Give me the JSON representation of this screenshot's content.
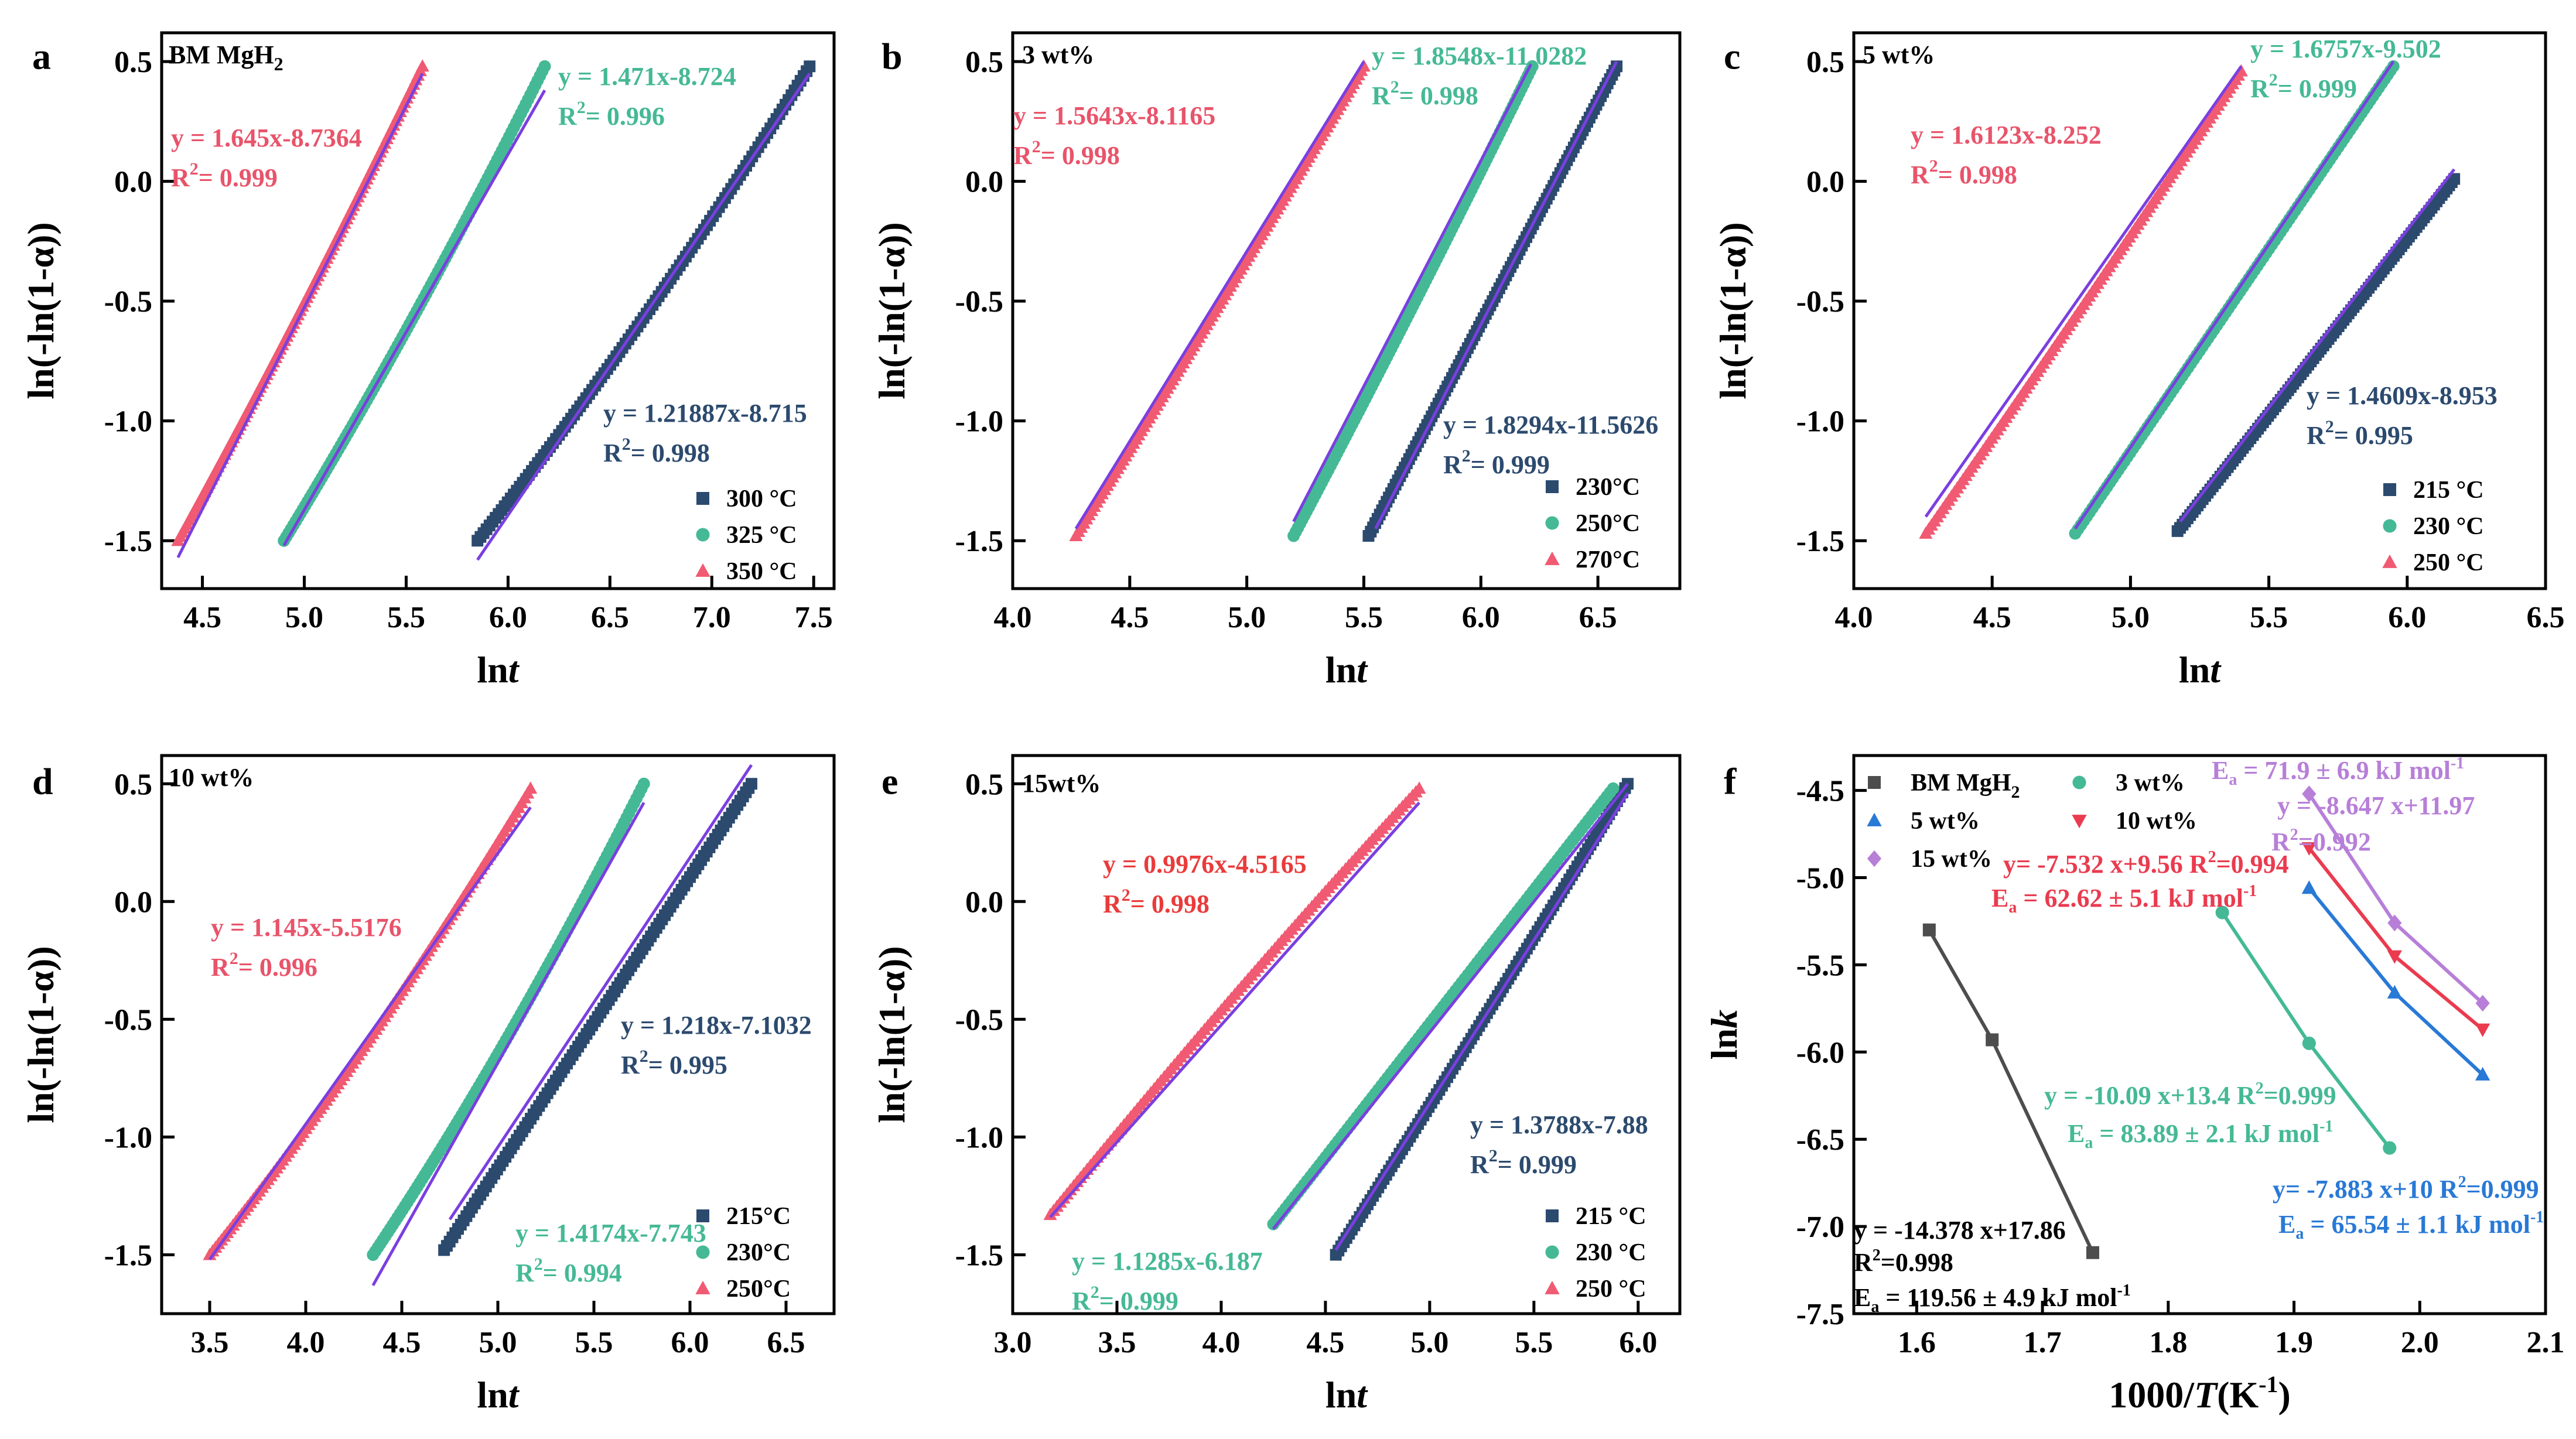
{
  "chart_data": [
    {
      "id": "a",
      "type": "scatter",
      "panel_label": "a",
      "inner_title": "BM MgH",
      "inner_title_sub": "2",
      "xlabel": "ln",
      "xlabel_italic": "t",
      "ylabel": "ln(-ln(1-α))",
      "xlim": [
        4.3,
        7.6
      ],
      "ylim": [
        -1.7,
        0.62
      ],
      "xticks": [
        "4.5",
        "5.0",
        "5.5",
        "6.0",
        "6.5",
        "7.0",
        "7.5"
      ],
      "yticks": [
        "0.5",
        "0.0",
        "-0.5",
        "-1.0",
        "-1.5"
      ],
      "legend": [
        "300 °C",
        "325 °C",
        "350 °C"
      ],
      "series": [
        {
          "name": "300 °C",
          "marker": "square",
          "color": "#2c4a6e",
          "x0": 5.85,
          "x1": 7.48,
          "y0": -1.5,
          "y1": 0.48,
          "curve": 0.12,
          "fit": {
            "x0": 5.85,
            "x1": 7.48,
            "y0": -1.58,
            "y1": 0.45
          }
        },
        {
          "name": "325 °C",
          "marker": "circle",
          "color": "#45b995",
          "x0": 4.9,
          "x1": 6.18,
          "y0": -1.5,
          "y1": 0.48,
          "curve": 0.1,
          "fit": {
            "x0": 4.9,
            "x1": 6.18,
            "y0": -1.52,
            "y1": 0.38
          }
        },
        {
          "name": "350 °C",
          "marker": "triangle",
          "color": "#f05a72",
          "x0": 4.38,
          "x1": 5.58,
          "y0": -1.5,
          "y1": 0.48,
          "curve": 0.06,
          "fit": {
            "x0": 4.38,
            "x1": 5.58,
            "y0": -1.57,
            "y1": 0.45
          }
        }
      ],
      "annotations": [
        {
          "eq": "y  = 1.645x-8.7364",
          "r2": "0.999",
          "color": "#e8546b"
        },
        {
          "eq": "y  = 1.471x-8.724",
          "r2": "0.996",
          "color": "#45b995"
        },
        {
          "eq": "y = 1.21887x-8.715",
          "r2": "0.998",
          "color": "#2c4a6e"
        }
      ]
    },
    {
      "id": "b",
      "type": "scatter",
      "panel_label": "b",
      "inner_title": "3 wt%",
      "xlabel": "ln",
      "xlabel_italic": "t",
      "ylabel": "ln(-ln(1-α))",
      "xlim": [
        4.0,
        6.85
      ],
      "ylim": [
        -1.7,
        0.62
      ],
      "xticks": [
        "4.0",
        "4.5",
        "5.0",
        "5.5",
        "6.0",
        "6.5"
      ],
      "yticks": [
        "0.5",
        "0.0",
        "-0.5",
        "-1.0",
        "-1.5"
      ],
      "legend": [
        "230°C",
        "250°C",
        "270°C"
      ],
      "series": [
        {
          "name": "230°C",
          "marker": "square",
          "color": "#2c4a6e",
          "x0": 5.52,
          "x1": 6.58,
          "y0": -1.48,
          "y1": 0.48,
          "curve": 0.0,
          "fit": {
            "x0": 5.55,
            "x1": 6.58,
            "y0": -1.45,
            "y1": 0.5
          }
        },
        {
          "name": "250°C",
          "marker": "circle",
          "color": "#45b995",
          "x0": 5.2,
          "x1": 6.22,
          "y0": -1.48,
          "y1": 0.48,
          "curve": 0.04,
          "fit": {
            "x0": 5.2,
            "x1": 6.22,
            "y0": -1.42,
            "y1": 0.5
          }
        },
        {
          "name": "270°C",
          "marker": "triangle",
          "color": "#f05a72",
          "x0": 4.27,
          "x1": 5.5,
          "y0": -1.48,
          "y1": 0.48,
          "curve": 0.02,
          "fit": {
            "x0": 4.27,
            "x1": 5.5,
            "y0": -1.45,
            "y1": 0.5
          }
        }
      ],
      "annotations": [
        {
          "eq": "y  = 1.5643x-8.1165",
          "r2": "0.998",
          "color": "#e8546b"
        },
        {
          "eq": "y  = 1.8548x-11.0282",
          "r2": "0.998",
          "color": "#45b995"
        },
        {
          "eq": "y = 1.8294x-11.5626",
          "r2": "0.999",
          "color": "#2c4a6e"
        }
      ]
    },
    {
      "id": "c",
      "type": "scatter",
      "panel_label": "c",
      "inner_title": "5 wt%",
      "xlabel": "ln",
      "xlabel_italic": "t",
      "ylabel": "ln(-ln(1-α))",
      "xlim": [
        4.0,
        6.5
      ],
      "ylim": [
        -1.7,
        0.62
      ],
      "xticks": [
        "4.0",
        "4.5",
        "5.0",
        "5.5",
        "6.0",
        "6.5"
      ],
      "yticks": [
        "0.5",
        "0.0",
        "-0.5",
        "-1.0",
        "-1.5"
      ],
      "legend": [
        "215 °C",
        "230 °C",
        "250 °C"
      ],
      "series": [
        {
          "name": "215 °C",
          "marker": "square",
          "color": "#2c4a6e",
          "x0": 5.17,
          "x1": 6.17,
          "y0": -1.46,
          "y1": 0.01,
          "curve": 0.0,
          "fit": {
            "x0": 5.18,
            "x1": 6.17,
            "y0": -1.42,
            "y1": 0.05
          }
        },
        {
          "name": "230 °C",
          "marker": "circle",
          "color": "#45b995",
          "x0": 4.8,
          "x1": 5.95,
          "y0": -1.47,
          "y1": 0.48,
          "curve": 0.0,
          "fit": {
            "x0": 4.8,
            "x1": 5.95,
            "y0": -1.45,
            "y1": 0.5
          }
        },
        {
          "name": "250 °C",
          "marker": "triangle",
          "color": "#f05a72",
          "x0": 4.26,
          "x1": 5.4,
          "y0": -1.47,
          "y1": 0.46,
          "curve": 0.02,
          "fit": {
            "x0": 4.26,
            "x1": 5.4,
            "y0": -1.4,
            "y1": 0.48
          }
        }
      ],
      "annotations": [
        {
          "eq": "y  = 1.6123x-8.252",
          "r2": "0.998",
          "color": "#e8546b"
        },
        {
          "eq": "y  = 1.6757x-9.502",
          "r2": "0.999",
          "color": "#45b995"
        },
        {
          "eq": "y = 1.4609x-8.953",
          "r2": "0.995",
          "color": "#2c4a6e"
        }
      ]
    },
    {
      "id": "d",
      "type": "scatter",
      "panel_label": "d",
      "inner_title": "10 wt%",
      "xlabel": "ln",
      "xlabel_italic": "t",
      "ylabel": "ln(-ln(1-α))",
      "xlim": [
        3.25,
        6.75
      ],
      "ylim": [
        -1.75,
        0.62
      ],
      "xticks": [
        "3.5",
        "4.0",
        "4.5",
        "5.0",
        "5.5",
        "6.0",
        "6.5"
      ],
      "yticks": [
        "0.5",
        "0.0",
        "-0.5",
        "-1.0",
        "-1.5"
      ],
      "legend": [
        "215°C",
        "230°C",
        "250°C"
      ],
      "series": [
        {
          "name": "215°C",
          "marker": "square",
          "color": "#2c4a6e",
          "x0": 4.72,
          "x1": 6.32,
          "y0": -1.48,
          "y1": 0.5,
          "curve": 0.0,
          "fit": {
            "x0": 4.75,
            "x1": 6.32,
            "y0": -1.35,
            "y1": 0.58
          }
        },
        {
          "name": "230°C",
          "marker": "circle",
          "color": "#45b995",
          "x0": 4.35,
          "x1": 5.76,
          "y0": -1.5,
          "y1": 0.5,
          "curve": 0.14,
          "fit": {
            "x0": 4.35,
            "x1": 5.76,
            "y0": -1.63,
            "y1": 0.42
          }
        },
        {
          "name": "250°C",
          "marker": "triangle",
          "color": "#f05a72",
          "x0": 3.5,
          "x1": 5.17,
          "y0": -1.5,
          "y1": 0.48,
          "curve": 0.14,
          "fit": {
            "x0": 3.5,
            "x1": 5.17,
            "y0": -1.52,
            "y1": 0.4
          }
        }
      ],
      "annotations": [
        {
          "eq": "y  = 1.145x-5.5176",
          "r2": "0.996",
          "color": "#e8546b"
        },
        {
          "eq": "y  = 1.4174x-7.743",
          "r2": "0.994",
          "color": "#45b995"
        },
        {
          "eq": "y  = 1.218x-7.1032",
          "r2": "0.995",
          "color": "#2c4a6e"
        }
      ]
    },
    {
      "id": "e",
      "type": "scatter",
      "panel_label": "e",
      "inner_title": "15wt%",
      "xlabel": "ln",
      "xlabel_italic": "t",
      "ylabel": "ln(-ln(1-α))",
      "xlim": [
        3.0,
        6.2
      ],
      "ylim": [
        -1.75,
        0.62
      ],
      "xticks": [
        "3.0",
        "3.5",
        "4.0",
        "4.5",
        "5.0",
        "5.5",
        "6.0"
      ],
      "yticks": [
        "0.5",
        "0.0",
        "-0.5",
        "-1.0",
        "-1.5"
      ],
      "legend": [
        "215 °C",
        "230 °C",
        "250 °C"
      ],
      "series": [
        {
          "name": "215 °C",
          "marker": "square",
          "color": "#2c4a6e",
          "x0": 4.55,
          "x1": 5.95,
          "y0": -1.5,
          "y1": 0.5,
          "curve": 0.02,
          "fit": {
            "x0": 4.55,
            "x1": 5.95,
            "y0": -1.48,
            "y1": 0.46
          }
        },
        {
          "name": "230 °C",
          "marker": "circle",
          "color": "#45b995",
          "x0": 4.25,
          "x1": 5.88,
          "y0": -1.37,
          "y1": 0.48,
          "curve": 0.0,
          "fit": {
            "x0": 4.25,
            "x1": 5.95,
            "y0": -1.39,
            "y1": 0.5
          }
        },
        {
          "name": "250 °C",
          "marker": "triangle",
          "color": "#f05a72",
          "x0": 3.18,
          "x1": 4.95,
          "y0": -1.33,
          "y1": 0.48,
          "curve": -0.06,
          "fit": {
            "x0": 3.18,
            "x1": 4.95,
            "y0": -1.34,
            "y1": 0.42
          }
        }
      ],
      "annotations": [
        {
          "eq": "y  = 0.9976x-4.5165",
          "r2": "0.998",
          "color": "#ea3b3b"
        },
        {
          "eq": "y  = 1.1285x-6.187",
          "r2": "0.999",
          "color": "#45b995"
        },
        {
          "eq": "y = 1.3788x-7.88",
          "r2": "0.999",
          "color": "#2c4a6e"
        }
      ]
    },
    {
      "id": "f",
      "type": "line",
      "panel_label": "f",
      "xlabel": "1000/",
      "xlabel_italic": "T",
      "xlabel_tail": "(K",
      "xlabel_sup": "-1",
      "xlabel_end": ")",
      "ylabel": "ln",
      "ylabel_italic": "k",
      "xlim": [
        1.55,
        2.1
      ],
      "ylim": [
        -7.5,
        -4.3
      ],
      "xticks": [
        "1.6",
        "1.7",
        "1.8",
        "1.9",
        "2.0",
        "2.1"
      ],
      "yticks": [
        "-4.5",
        "-5.0",
        "-5.5",
        "-6.0",
        "-6.5",
        "-7.0",
        "-7.5"
      ],
      "series": [
        {
          "name": "BM MgH2",
          "legend_main": "BM MgH",
          "legend_sub": "2",
          "marker": "square",
          "color": "#4d4d4d",
          "x": [
            1.61,
            1.66,
            1.74
          ],
          "y": [
            -5.3,
            -5.93,
            -7.15
          ]
        },
        {
          "name": "3 wt%",
          "marker": "circle",
          "color": "#45b995",
          "x": [
            1.843,
            1.912,
            1.976
          ],
          "y": [
            -5.2,
            -5.95,
            -6.55
          ]
        },
        {
          "name": "5 wt%",
          "marker": "triangle",
          "color": "#2979d6",
          "x": [
            1.912,
            1.98,
            2.05
          ],
          "y": [
            -5.06,
            -5.66,
            -6.13
          ]
        },
        {
          "name": "10 wt%",
          "marker": "triangle-down",
          "color": "#ea3b4f",
          "x": [
            1.912,
            1.98,
            2.05
          ],
          "y": [
            -4.83,
            -5.45,
            -5.87
          ]
        },
        {
          "name": "15 wt%",
          "marker": "diamond",
          "color": "#b77fd8",
          "x": [
            1.912,
            1.98,
            2.05
          ],
          "y": [
            -4.52,
            -5.26,
            -5.72
          ]
        }
      ],
      "annotations": [
        {
          "text": "y = -14.378 x+17.86",
          "r2": "0.998",
          "ea": "119.56 ± 4.9 kJ mol",
          "color": "#000000"
        },
        {
          "text": "y = -10.09 x+13.4",
          "r2": "0.999",
          "ea": "83.89 ± 2.1 kJ mol",
          "color": "#45b995"
        },
        {
          "text": "y= -7.883 x+10",
          "r2": "0.999",
          "ea": "65.54 ± 1.1 kJ mol",
          "color": "#2979d6"
        },
        {
          "text": "y= -7.532 x+9.56",
          "r2": "0.994",
          "ea": "62.62 ± 5.1 kJ mol",
          "color": "#ea3b4f"
        },
        {
          "text": "y = -8.647 x+11.97",
          "r2": "0.992",
          "ea": "71.9 ± 6.9 kJ mol",
          "color": "#b77fd8"
        }
      ]
    }
  ]
}
